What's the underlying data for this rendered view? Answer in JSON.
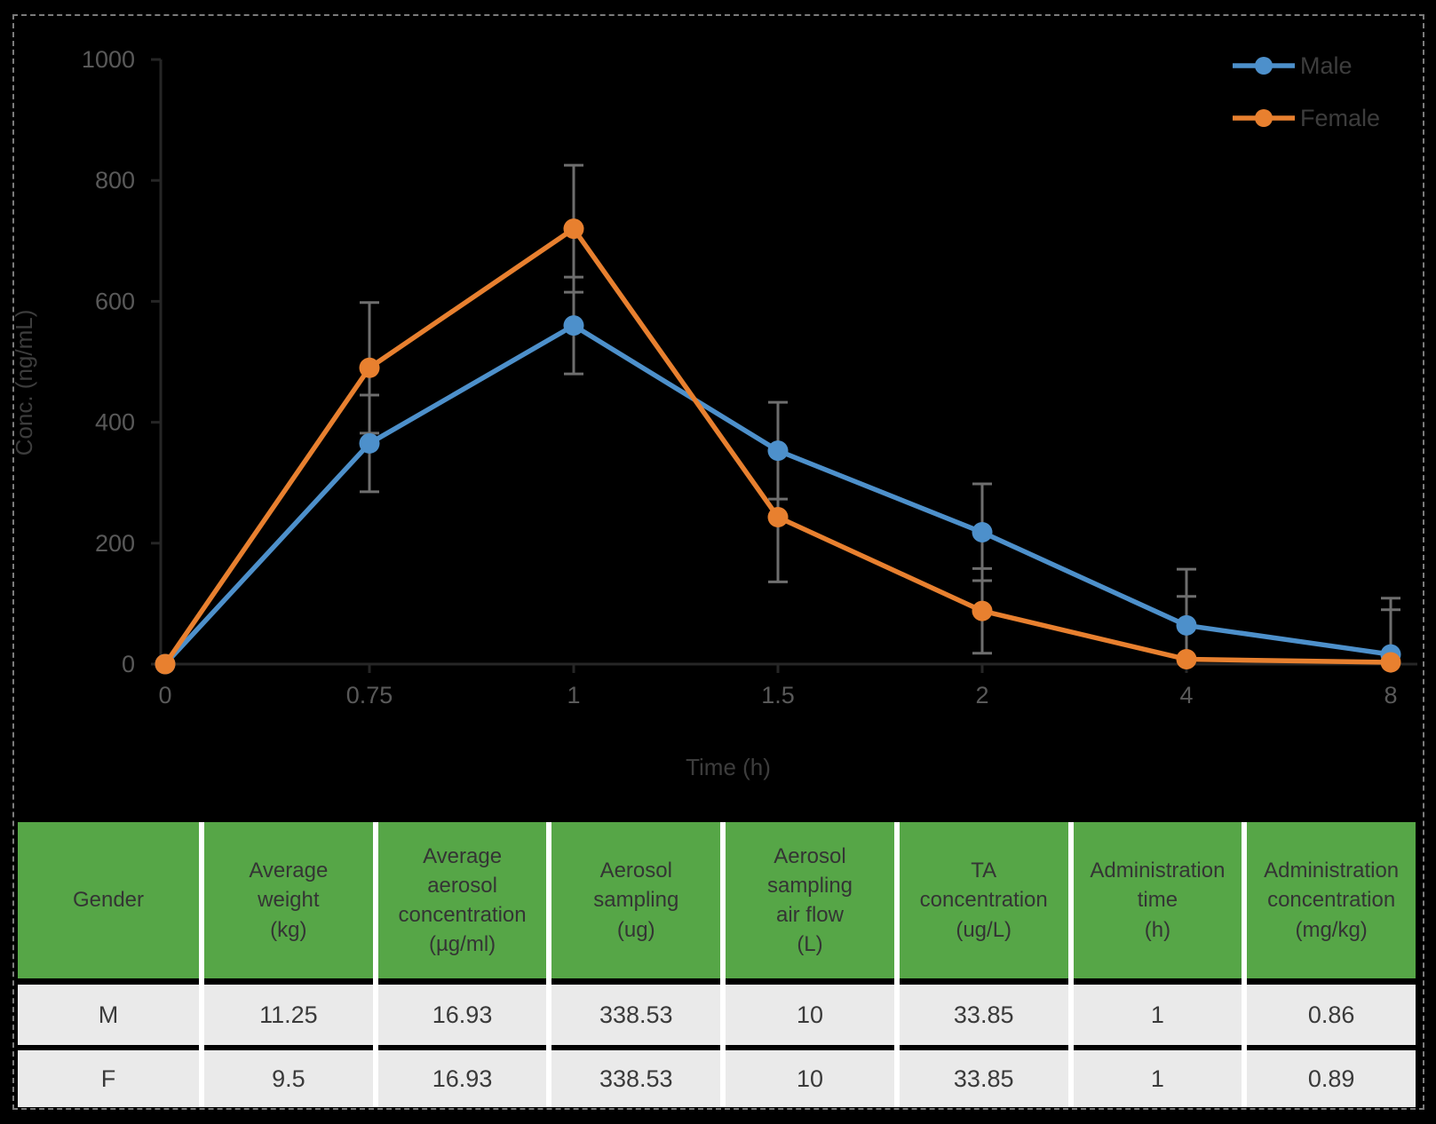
{
  "chart_data": {
    "type": "line",
    "title": "",
    "xlabel": "Time (h)",
    "ylabel": "Conc. (ng/mL)",
    "categories": [
      "0",
      "0.75",
      "1",
      "1.5",
      "2",
      "4",
      "8"
    ],
    "x_values_hours": [
      0,
      0.75,
      1,
      1.5,
      2,
      4,
      8
    ],
    "yticks": [
      0,
      200,
      400,
      600,
      800,
      1000
    ],
    "ylim": [
      0,
      1000
    ],
    "grid": false,
    "legend_position": "top-right",
    "error_bars": true,
    "series": [
      {
        "name": "Male",
        "color": "#4D90CB",
        "values": [
          0,
          365,
          560,
          353,
          218,
          64,
          16
        ],
        "sd": [
          0,
          80,
          80,
          80,
          80,
          93,
          93
        ]
      },
      {
        "name": "Female",
        "color": "#E8802F",
        "values": [
          0,
          490,
          720,
          243,
          88,
          8,
          3
        ],
        "sd": [
          0,
          108,
          105,
          107,
          70,
          104,
          87
        ]
      }
    ]
  },
  "table": {
    "columns": [
      "Gender",
      "Average\nweight\n(kg)",
      "Average\naerosol\nconcentration\n(µg/ml)",
      "Aerosol\nsampling\n(ug)",
      "Aerosol\nsampling\nair flow\n(L)",
      "TA\nconcentration\n(ug/L)",
      "Administration\ntime\n(h)",
      "Administration\nconcentration\n(mg/kg)"
    ],
    "rows": [
      [
        "M",
        "11.25",
        "16.93",
        "338.53",
        "10",
        "33.85",
        "1",
        "0.86"
      ],
      [
        "F",
        "9.5",
        "16.93",
        "338.53",
        "10",
        "33.85",
        "1",
        "0.89"
      ]
    ]
  },
  "colors": {
    "background": "#000000",
    "frame_dash": "#7b7b7b",
    "axis_line": "#262626",
    "tick_label": "#595959",
    "text": "#3d3d3d",
    "error_bar": "#6E6E6E",
    "table_header_bg": "#56A647",
    "table_row_bg": "#EAEAEA",
    "table_separator": "#FFFFFF"
  }
}
